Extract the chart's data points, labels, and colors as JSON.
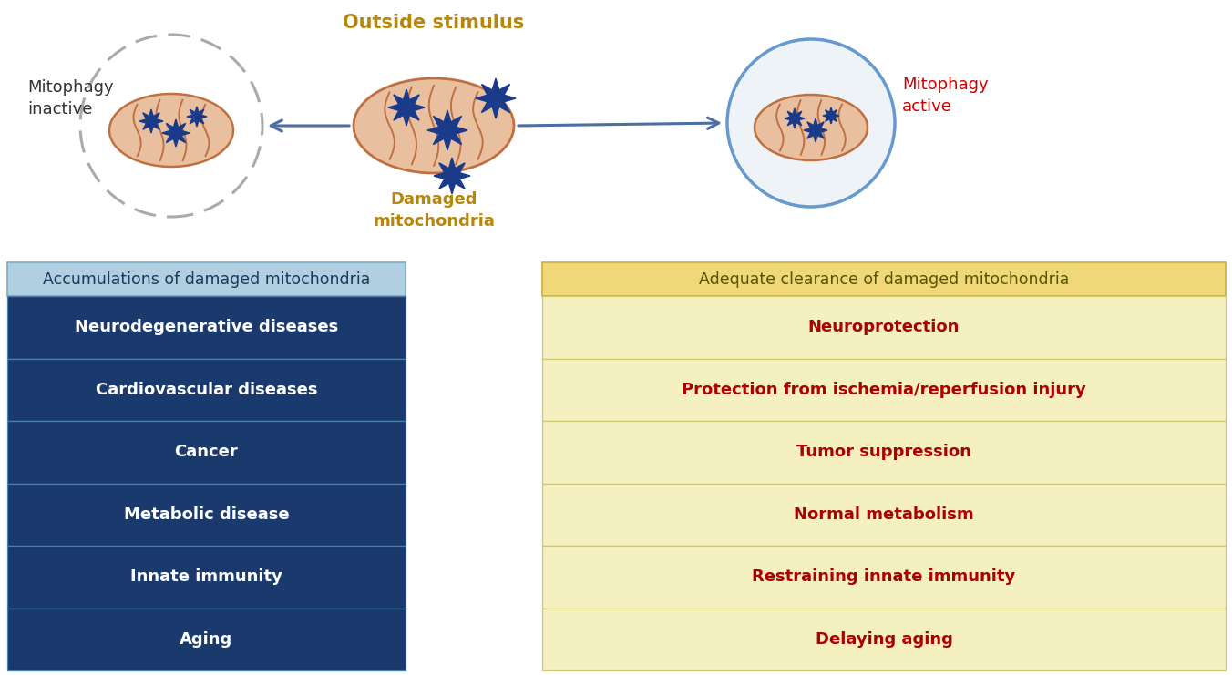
{
  "bg_color": "#ffffff",
  "outside_stimulus_text": "Outside stimulus",
  "outside_stimulus_color": "#b8860b",
  "damaged_mito_text": "Damaged\nmitochondria",
  "damaged_mito_color": "#b8860b",
  "mitophagy_inactive_text": "Mitophagy\ninactive",
  "mitophagy_inactive_color": "#333333",
  "mitophagy_active_text": "Mitophagy\nactive",
  "mitophagy_active_color": "#cc0000",
  "left_header_bg": "#b0cfe0",
  "left_header_text": "Accumulations of damaged mitochondria",
  "left_header_text_color": "#1a3a5c",
  "right_header_bg": "#f0d878",
  "right_header_text": "Adequate clearance of damaged mitochondria",
  "right_header_text_color": "#555500",
  "left_items": [
    "Neurodegenerative diseases",
    "Cardiovascular diseases",
    "Cancer",
    "Metabolic disease",
    "Innate immunity",
    "Aging"
  ],
  "left_item_bg": "#1a3a6e",
  "left_item_text_color": "#ffffff",
  "right_items": [
    "Neuroprotection",
    "Protection from ischemia/reperfusion injury",
    "Tumor suppression",
    "Normal metabolism",
    "Restraining innate immunity",
    "Delaying aging"
  ],
  "right_item_bg": "#f5f0c0",
  "right_item_text_color": "#aa0000",
  "arrow_color": "#4a6fa0",
  "mito_face": "#e8c0a0",
  "mito_edge": "#c07040",
  "cell_left_edge": "#aaaaaa",
  "cell_right_edge": "#6699cc",
  "blob_color": "#1a3a8a"
}
